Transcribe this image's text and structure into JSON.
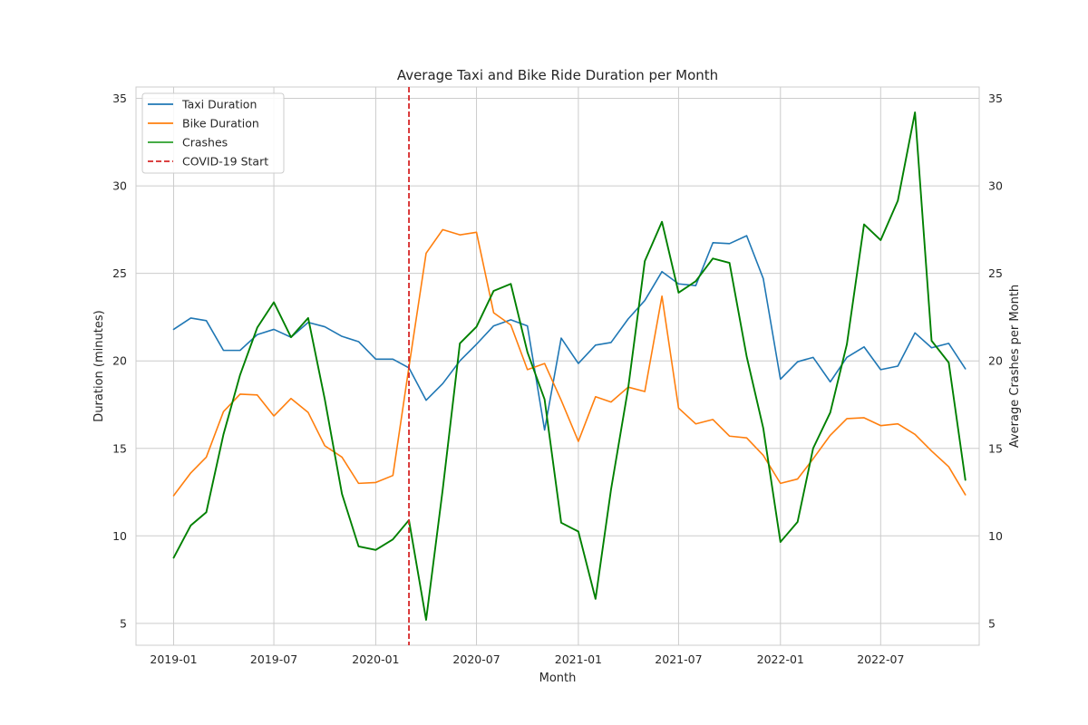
{
  "chart_data": {
    "type": "line",
    "title": "Average Taxi and Bike Ride Duration per Month",
    "xlabel": "Month",
    "ylabel": "Duration (minutes)",
    "y2label": "Average Crashes per Month",
    "x_start": "2019-01",
    "x_end": "2022-11",
    "xlim": [
      "2018-10-25",
      "2022-12-26"
    ],
    "ylim": [
      3.75,
      35.65
    ],
    "y2lim": [
      3.75,
      35.65
    ],
    "xticks": [
      "2019-01",
      "2019-07",
      "2020-01",
      "2020-07",
      "2021-01",
      "2021-07",
      "2022-01",
      "2022-07"
    ],
    "yticks": [
      5,
      10,
      15,
      20,
      25,
      30,
      35
    ],
    "y2ticks": [
      5,
      10,
      15,
      20,
      25,
      30,
      35
    ],
    "grid": true,
    "legend_position": "top-left",
    "months": [
      "2019-01",
      "2019-02",
      "2019-03",
      "2019-04",
      "2019-05",
      "2019-06",
      "2019-07",
      "2019-08",
      "2019-09",
      "2019-10",
      "2019-11",
      "2019-12",
      "2020-01",
      "2020-02",
      "2020-03",
      "2020-04",
      "2020-05",
      "2020-06",
      "2020-07",
      "2020-08",
      "2020-09",
      "2020-10",
      "2020-11",
      "2020-12",
      "2021-01",
      "2021-02",
      "2021-03",
      "2021-04",
      "2021-05",
      "2021-06",
      "2021-07",
      "2021-08",
      "2021-09",
      "2021-10",
      "2021-11",
      "2021-12",
      "2022-01",
      "2022-02",
      "2022-03",
      "2022-04",
      "2022-05",
      "2022-06",
      "2022-07",
      "2022-08",
      "2022-09",
      "2022-10",
      "2022-11"
    ],
    "series": [
      {
        "name": "Taxi Duration",
        "color": "#1f77b4",
        "axis": "left",
        "values": [
          21.8,
          22.45,
          22.3,
          20.6,
          20.6,
          21.5,
          21.8,
          21.35,
          22.2,
          21.95,
          21.4,
          21.1,
          20.1,
          20.1,
          19.6,
          17.75,
          18.7,
          20.0,
          20.95,
          22.0,
          22.35,
          22.0,
          16.05,
          21.3,
          19.85,
          20.9,
          21.05,
          22.4,
          23.45,
          25.1,
          24.4,
          24.3,
          26.75,
          26.7,
          27.15,
          24.7,
          18.95,
          19.95,
          20.2,
          18.8,
          20.2,
          20.8,
          19.5,
          19.7,
          21.6,
          20.75,
          21.0
        ]
      },
      {
        "name": "Bike Duration",
        "color": "#ff7f0e",
        "axis": "left",
        "values": [
          12.3,
          13.6,
          14.5,
          17.1,
          18.1,
          18.05,
          16.85,
          17.85,
          17.05,
          15.15,
          14.5,
          13.0,
          13.05,
          13.45,
          19.65,
          26.15,
          27.5,
          27.2,
          27.35,
          22.75,
          22.05,
          19.5,
          19.85,
          17.75,
          15.4,
          17.95,
          17.65,
          18.5,
          18.25,
          23.7,
          17.3,
          16.4,
          16.65,
          15.7,
          15.6,
          14.6,
          13.0,
          13.25,
          14.4,
          15.75,
          16.7,
          16.75,
          16.3,
          16.4,
          15.8,
          14.85,
          13.95
        ]
      },
      {
        "name": "Crashes",
        "color": "#008000",
        "axis": "right",
        "values": [
          8.75,
          10.6,
          11.35,
          15.8,
          19.2,
          21.9,
          23.35,
          21.35,
          22.45,
          17.8,
          12.4,
          9.4,
          9.2,
          9.8,
          10.9,
          5.2,
          12.65,
          21.0,
          21.95,
          24.0,
          24.4,
          20.5,
          17.8,
          10.75,
          10.25,
          6.4,
          12.65,
          18.45,
          25.7,
          27.95,
          23.9,
          24.55,
          25.85,
          25.6,
          20.25,
          16.15,
          9.65,
          10.8,
          15.0,
          17.05,
          20.95,
          27.8,
          26.9,
          29.15,
          34.2,
          21.15,
          19.9
        ]
      }
    ],
    "extra_points": [
      {
        "series": "Taxi Duration",
        "month": "2022-12",
        "value": 19.55
      },
      {
        "series": "Bike Duration",
        "month": "2022-12",
        "value": 12.35
      },
      {
        "series": "Crashes",
        "month": "2022-12",
        "value": 13.2
      }
    ],
    "annotations": [
      {
        "name": "COVID-19 Start",
        "type": "vline",
        "x": "2020-03-01",
        "color": "#d62728",
        "style": "dashed"
      }
    ],
    "legend": [
      {
        "label": "Taxi Duration",
        "color": "#1f77b4",
        "style": "solid"
      },
      {
        "label": "Bike Duration",
        "color": "#ff7f0e",
        "style": "solid"
      },
      {
        "label": "Crashes",
        "color": "#2ca02c",
        "style": "solid"
      },
      {
        "label": "COVID-19 Start",
        "color": "#d62728",
        "style": "dashed"
      }
    ]
  }
}
